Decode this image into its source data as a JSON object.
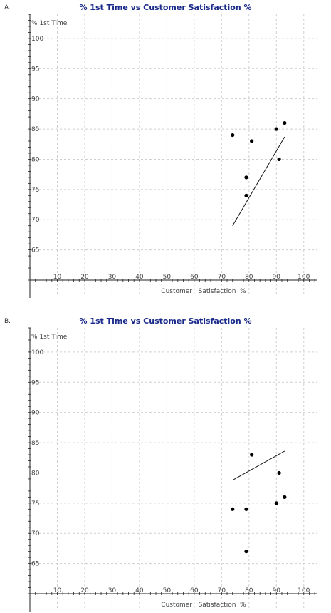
{
  "chart_data": [
    {
      "panel_label": "A.",
      "type": "scatter",
      "title": "% 1st Time vs Customer Satisfaction %",
      "xlabel": "Customer   Satisfaction  %",
      "ylabel": "% 1st Time",
      "xlim": [
        0,
        105
      ],
      "ylim": [
        60,
        104
      ],
      "x_ticks": [
        10,
        20,
        30,
        40,
        50,
        60,
        70,
        80,
        90,
        100
      ],
      "y_ticks": [
        65,
        70,
        75,
        80,
        85,
        90,
        95,
        100
      ],
      "grid": true,
      "points": [
        {
          "x": 74,
          "y": 84
        },
        {
          "x": 79,
          "y": 77
        },
        {
          "x": 79,
          "y": 74
        },
        {
          "x": 81,
          "y": 83
        },
        {
          "x": 90,
          "y": 85
        },
        {
          "x": 91,
          "y": 80
        },
        {
          "x": 93,
          "y": 86
        }
      ],
      "trend_line": {
        "x": [
          74,
          93
        ],
        "y": [
          69,
          83.7
        ]
      }
    },
    {
      "panel_label": "B.",
      "type": "scatter",
      "title": "% 1st Time vs Customer Satisfaction %",
      "xlabel": "Customer   Satisfaction  %",
      "ylabel": "% 1st Time",
      "xlim": [
        0,
        105
      ],
      "ylim": [
        60,
        104
      ],
      "x_ticks": [
        10,
        20,
        30,
        40,
        50,
        60,
        70,
        80,
        90,
        100
      ],
      "y_ticks": [
        65,
        70,
        75,
        80,
        85,
        90,
        95,
        100
      ],
      "grid": true,
      "points": [
        {
          "x": 74,
          "y": 74
        },
        {
          "x": 79,
          "y": 74
        },
        {
          "x": 79,
          "y": 67
        },
        {
          "x": 81,
          "y": 83
        },
        {
          "x": 90,
          "y": 75
        },
        {
          "x": 91,
          "y": 80
        },
        {
          "x": 93,
          "y": 76
        }
      ],
      "trend_line": {
        "x": [
          74,
          93
        ],
        "y": [
          78.8,
          83.6
        ]
      }
    }
  ]
}
